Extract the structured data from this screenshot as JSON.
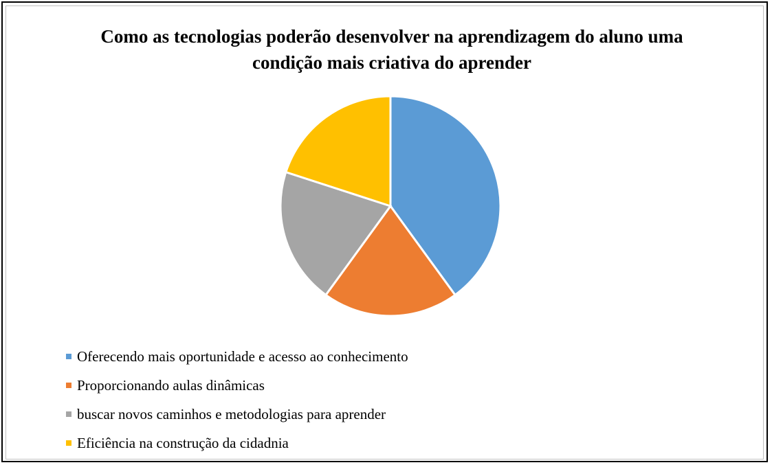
{
  "chart_data": {
    "type": "pie",
    "title": "Como as tecnologias poderão desenvolver na aprendizagem do aluno uma condição mais criativa do aprender",
    "categories": [
      "Oferecendo mais oportunidade e acesso ao conhecimento",
      "Proporcionando aulas dinâmicas",
      "buscar novos caminhos e metodologias para aprender",
      "Eficiência na construção da cidadnia"
    ],
    "values": [
      40,
      20,
      20,
      20
    ],
    "colors": [
      "#5b9bd5",
      "#ed7d31",
      "#a5a5a5",
      "#ffc000"
    ],
    "legend": "bottom"
  }
}
